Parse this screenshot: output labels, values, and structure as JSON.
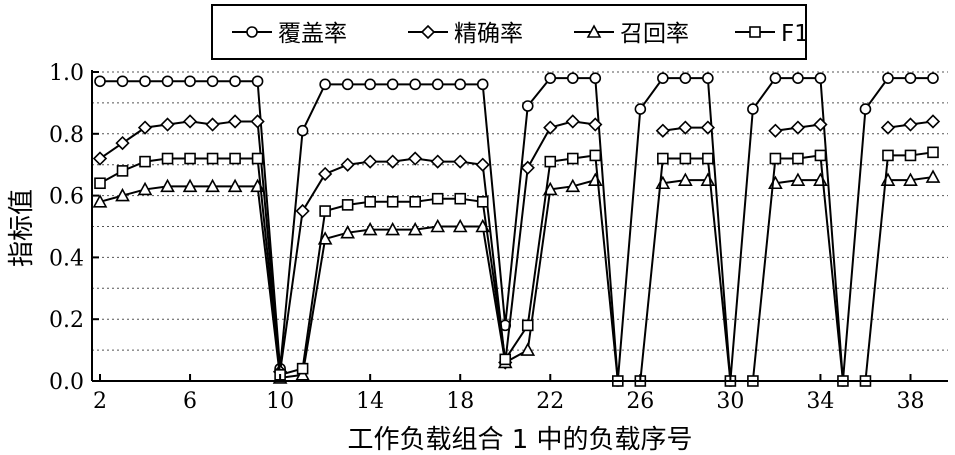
{
  "chart_data": {
    "type": "line",
    "xlabel": "工作负载组合 1 中的负载序号",
    "ylabel": "指标值",
    "xlim": [
      2,
      39
    ],
    "ylim": [
      0,
      1.0
    ],
    "x_ticks": [
      2,
      6,
      10,
      14,
      18,
      22,
      26,
      30,
      34,
      38
    ],
    "x_tick_labels": [
      "2",
      "6",
      "10",
      "14",
      "18",
      "22",
      "26",
      "30",
      "34",
      "38"
    ],
    "y_ticks": [
      0,
      0.2,
      0.4,
      0.6,
      0.8,
      1.0
    ],
    "y_tick_labels": [
      "0.0",
      "0.2",
      "0.4",
      "0.6",
      "0.8",
      "1.0"
    ],
    "grid": "horizontal dotted",
    "legend_position": "top",
    "x": [
      2,
      3,
      4,
      5,
      6,
      7,
      8,
      9,
      10,
      11,
      12,
      13,
      14,
      15,
      16,
      17,
      18,
      19,
      20,
      21,
      22,
      23,
      24,
      25,
      26,
      27,
      28,
      29,
      30,
      31,
      32,
      33,
      34,
      35,
      36,
      37,
      38,
      39
    ],
    "series": [
      {
        "name": "覆盖率",
        "marker": "circle",
        "values": [
          0.97,
          0.97,
          0.97,
          0.97,
          0.97,
          0.97,
          0.97,
          0.97,
          0.04,
          0.81,
          0.96,
          0.96,
          0.96,
          0.96,
          0.96,
          0.96,
          0.96,
          0.96,
          0.18,
          0.89,
          0.98,
          0.98,
          0.98,
          0.0,
          0.88,
          0.98,
          0.98,
          0.98,
          0.0,
          0.88,
          0.98,
          0.98,
          0.98,
          0.0,
          0.88,
          0.98,
          0.98,
          0.98
        ]
      },
      {
        "name": "精确率",
        "marker": "diamond",
        "values": [
          0.72,
          0.77,
          0.82,
          0.83,
          0.84,
          0.83,
          0.84,
          0.84,
          0.03,
          0.55,
          0.67,
          0.7,
          0.71,
          0.71,
          0.72,
          0.71,
          0.71,
          0.7,
          0.06,
          0.69,
          0.82,
          0.84,
          0.83,
          null,
          null,
          0.81,
          0.82,
          0.82,
          null,
          null,
          0.81,
          0.82,
          0.83,
          null,
          null,
          0.82,
          0.83,
          0.84
        ]
      },
      {
        "name": "召回率",
        "marker": "triangle",
        "values": [
          0.58,
          0.6,
          0.62,
          0.63,
          0.63,
          0.63,
          0.63,
          0.63,
          0.01,
          0.02,
          0.46,
          0.48,
          0.49,
          0.49,
          0.49,
          0.5,
          0.5,
          0.5,
          0.06,
          0.1,
          0.62,
          0.63,
          0.65,
          null,
          null,
          0.64,
          0.65,
          0.65,
          null,
          null,
          0.64,
          0.65,
          0.65,
          null,
          null,
          0.65,
          0.65,
          0.66
        ]
      },
      {
        "name": "F1",
        "marker": "square",
        "values": [
          0.64,
          0.68,
          0.71,
          0.72,
          0.72,
          0.72,
          0.72,
          0.72,
          0.02,
          0.04,
          0.55,
          0.57,
          0.58,
          0.58,
          0.58,
          0.59,
          0.59,
          0.58,
          0.07,
          0.18,
          0.71,
          0.72,
          0.73,
          0.0,
          0.0,
          0.72,
          0.72,
          0.72,
          0.0,
          0.0,
          0.72,
          0.72,
          0.73,
          0.0,
          0.0,
          0.73,
          0.73,
          0.74
        ]
      }
    ]
  }
}
